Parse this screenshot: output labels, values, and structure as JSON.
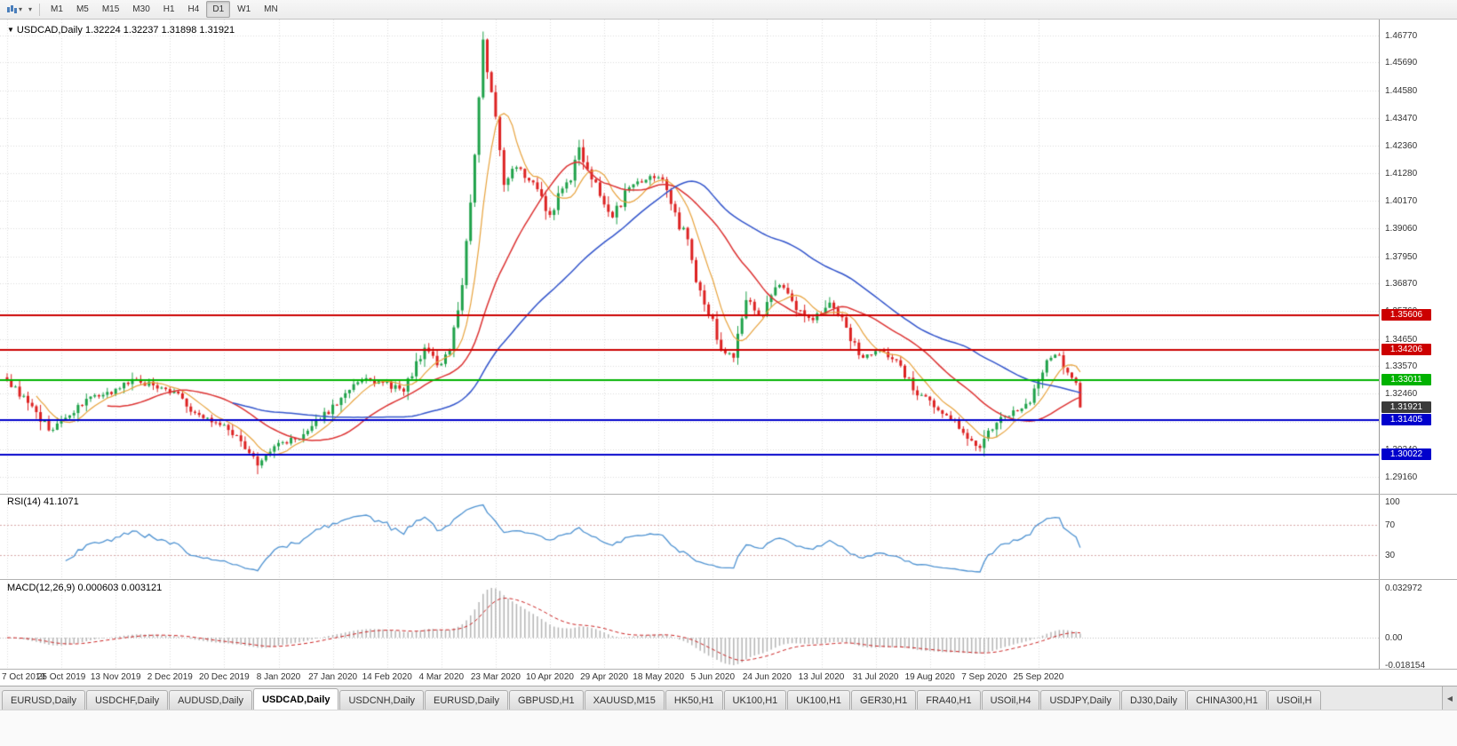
{
  "toolbar": {
    "timeframes": [
      "M1",
      "M5",
      "M15",
      "M30",
      "H1",
      "H4",
      "D1",
      "W1",
      "MN"
    ],
    "active_timeframe": "D1"
  },
  "header": {
    "symbol": "USDCAD,Daily",
    "ohlc": "1.32224 1.32237 1.31898 1.31921"
  },
  "icons": {
    "title_marker": "▼",
    "symbol_caret": "▾",
    "type_caret": "▾",
    "tab_scroll_left": "◀"
  },
  "chart_data": {
    "type": "candlestick",
    "symbol": "USDCAD",
    "timeframe": "Daily",
    "ohlc_display": {
      "open": "1.32224",
      "high": "1.32237",
      "low": "1.31898",
      "close": "1.31921"
    },
    "ylim": [
      1.2847,
      1.474
    ],
    "price_axis_ticks": [
      "1.46770",
      "1.45690",
      "1.44580",
      "1.43470",
      "1.42360",
      "1.41280",
      "1.40170",
      "1.39060",
      "1.37950",
      "1.36870",
      "1.35760",
      "1.34650",
      "1.33570",
      "1.32460",
      "1.31350",
      "1.30240",
      "1.29160"
    ],
    "x_labels": {
      "labels": [
        "7 Oct 2019",
        "25 Oct 2019",
        "13 Nov 2019",
        "2 Dec 2019",
        "20 Dec 2019",
        "8 Jan 2020",
        "27 Jan 2020",
        "14 Feb 2020",
        "4 Mar 2020",
        "23 Mar 2020",
        "10 Apr 2020",
        "29 Apr 2020",
        "18 May 2020",
        "5 Jun 2020",
        "24 Jun 2020",
        "13 Jul 2020",
        "31 Jul 2020",
        "19 Aug 2020",
        "7 Sep 2020",
        "25 Sep 2020"
      ],
      "candle_indices": [
        0,
        13,
        26,
        39,
        52,
        65,
        78,
        91,
        104,
        117,
        130,
        143,
        156,
        169,
        182,
        195,
        208,
        221,
        234,
        247
      ]
    },
    "noise_seed": 9,
    "anchors": [
      [
        1.33,
        0
      ],
      [
        1.321,
        5
      ],
      [
        1.31,
        5
      ],
      [
        1.316,
        5
      ],
      [
        1.3235,
        5
      ],
      [
        1.3245,
        5
      ],
      [
        1.3305,
        5
      ],
      [
        1.328,
        5
      ],
      [
        1.3255,
        5
      ],
      [
        1.317,
        5
      ],
      [
        1.313,
        5
      ],
      [
        1.308,
        5
      ],
      [
        1.296,
        5
      ],
      [
        1.305,
        5
      ],
      [
        1.3065,
        5
      ],
      [
        1.3145,
        5
      ],
      [
        1.323,
        5
      ],
      [
        1.33,
        5
      ],
      [
        1.329,
        5
      ],
      [
        1.3255,
        5
      ],
      [
        1.343,
        5
      ],
      [
        1.336,
        3
      ],
      [
        1.342,
        3
      ],
      [
        1.368,
        3
      ],
      [
        1.42,
        3
      ],
      [
        1.466,
        2
      ],
      [
        1.445,
        2
      ],
      [
        1.408,
        3
      ],
      [
        1.415,
        3
      ],
      [
        1.409,
        4
      ],
      [
        1.396,
        4
      ],
      [
        1.409,
        4
      ],
      [
        1.423,
        3
      ],
      [
        1.409,
        4
      ],
      [
        1.395,
        4
      ],
      [
        1.407,
        4
      ],
      [
        1.41,
        4
      ],
      [
        1.411,
        3
      ],
      [
        1.397,
        4
      ],
      [
        1.378,
        4
      ],
      [
        1.356,
        4
      ],
      [
        1.342,
        3
      ],
      [
        1.339,
        3
      ],
      [
        1.362,
        3
      ],
      [
        1.356,
        4
      ],
      [
        1.368,
        4
      ],
      [
        1.358,
        4
      ],
      [
        1.354,
        4
      ],
      [
        1.361,
        4
      ],
      [
        1.351,
        4
      ],
      [
        1.339,
        4
      ],
      [
        1.342,
        4
      ],
      [
        1.338,
        4
      ],
      [
        1.326,
        4
      ],
      [
        1.322,
        4
      ],
      [
        1.316,
        4
      ],
      [
        1.309,
        4
      ],
      [
        1.303,
        4
      ],
      [
        1.313,
        4
      ],
      [
        1.318,
        4
      ],
      [
        1.321,
        4
      ],
      [
        1.338,
        4
      ],
      [
        1.34,
        3
      ],
      [
        1.331,
        3
      ],
      [
        1.3192,
        2
      ]
    ],
    "candle_style": {
      "up_color": "#1fa24a",
      "down_color": "#dd2222"
    },
    "hlines": [
      {
        "value": 1.35606,
        "label": "1.35606",
        "color": "#cc0000"
      },
      {
        "value": 1.34206,
        "label": "1.34206",
        "color": "#cc0000"
      },
      {
        "value": 1.33011,
        "label": "1.33011",
        "color": "#00b200"
      },
      {
        "value": 1.31405,
        "label": "1.31405",
        "color": "#0000cc"
      },
      {
        "value": 1.30022,
        "label": "1.30022",
        "color": "#0000cc"
      }
    ],
    "current_price": {
      "value": 1.31921,
      "label": "1.31921",
      "color": "#3a3a3a"
    },
    "moving_averages": [
      {
        "period": 8,
        "color": "#e8a33d"
      },
      {
        "period": 25,
        "color": "#dd3333"
      },
      {
        "period": 55,
        "color": "#3355cc"
      }
    ],
    "rsi": {
      "label": "RSI(14) 41.1071",
      "period": 14,
      "value": 41.1071,
      "levels": [
        70,
        30
      ],
      "ticks": [
        "100",
        "70",
        "30"
      ],
      "color": "#4f93d2"
    },
    "macd": {
      "label": "MACD(12,26,9) 0.000603 0.003121",
      "fast": 12,
      "slow": 26,
      "signal": 9,
      "value_main": 0.000603,
      "value_signal": 0.003121,
      "ticks": [
        "0.032972",
        "0.00",
        "-0.018154"
      ],
      "hist_color": "#b5b5b5",
      "signal_color": "#cc2222"
    },
    "grid": {
      "color": "#dcdcdc",
      "on": true
    }
  },
  "tabs": {
    "items": [
      "EURUSD,Daily",
      "USDCHF,Daily",
      "AUDUSD,Daily",
      "USDCAD,Daily",
      "USDCNH,Daily",
      "EURUSD,Daily",
      "GBPUSD,H1",
      "XAUUSD,M15",
      "HK50,H1",
      "UK100,H1",
      "UK100,H1",
      "GER30,H1",
      "FRA40,H1",
      "USOil,H4",
      "USDJPY,Daily",
      "DJ30,Daily",
      "CHINA300,H1",
      "USOil,H"
    ],
    "active_index": 3
  }
}
